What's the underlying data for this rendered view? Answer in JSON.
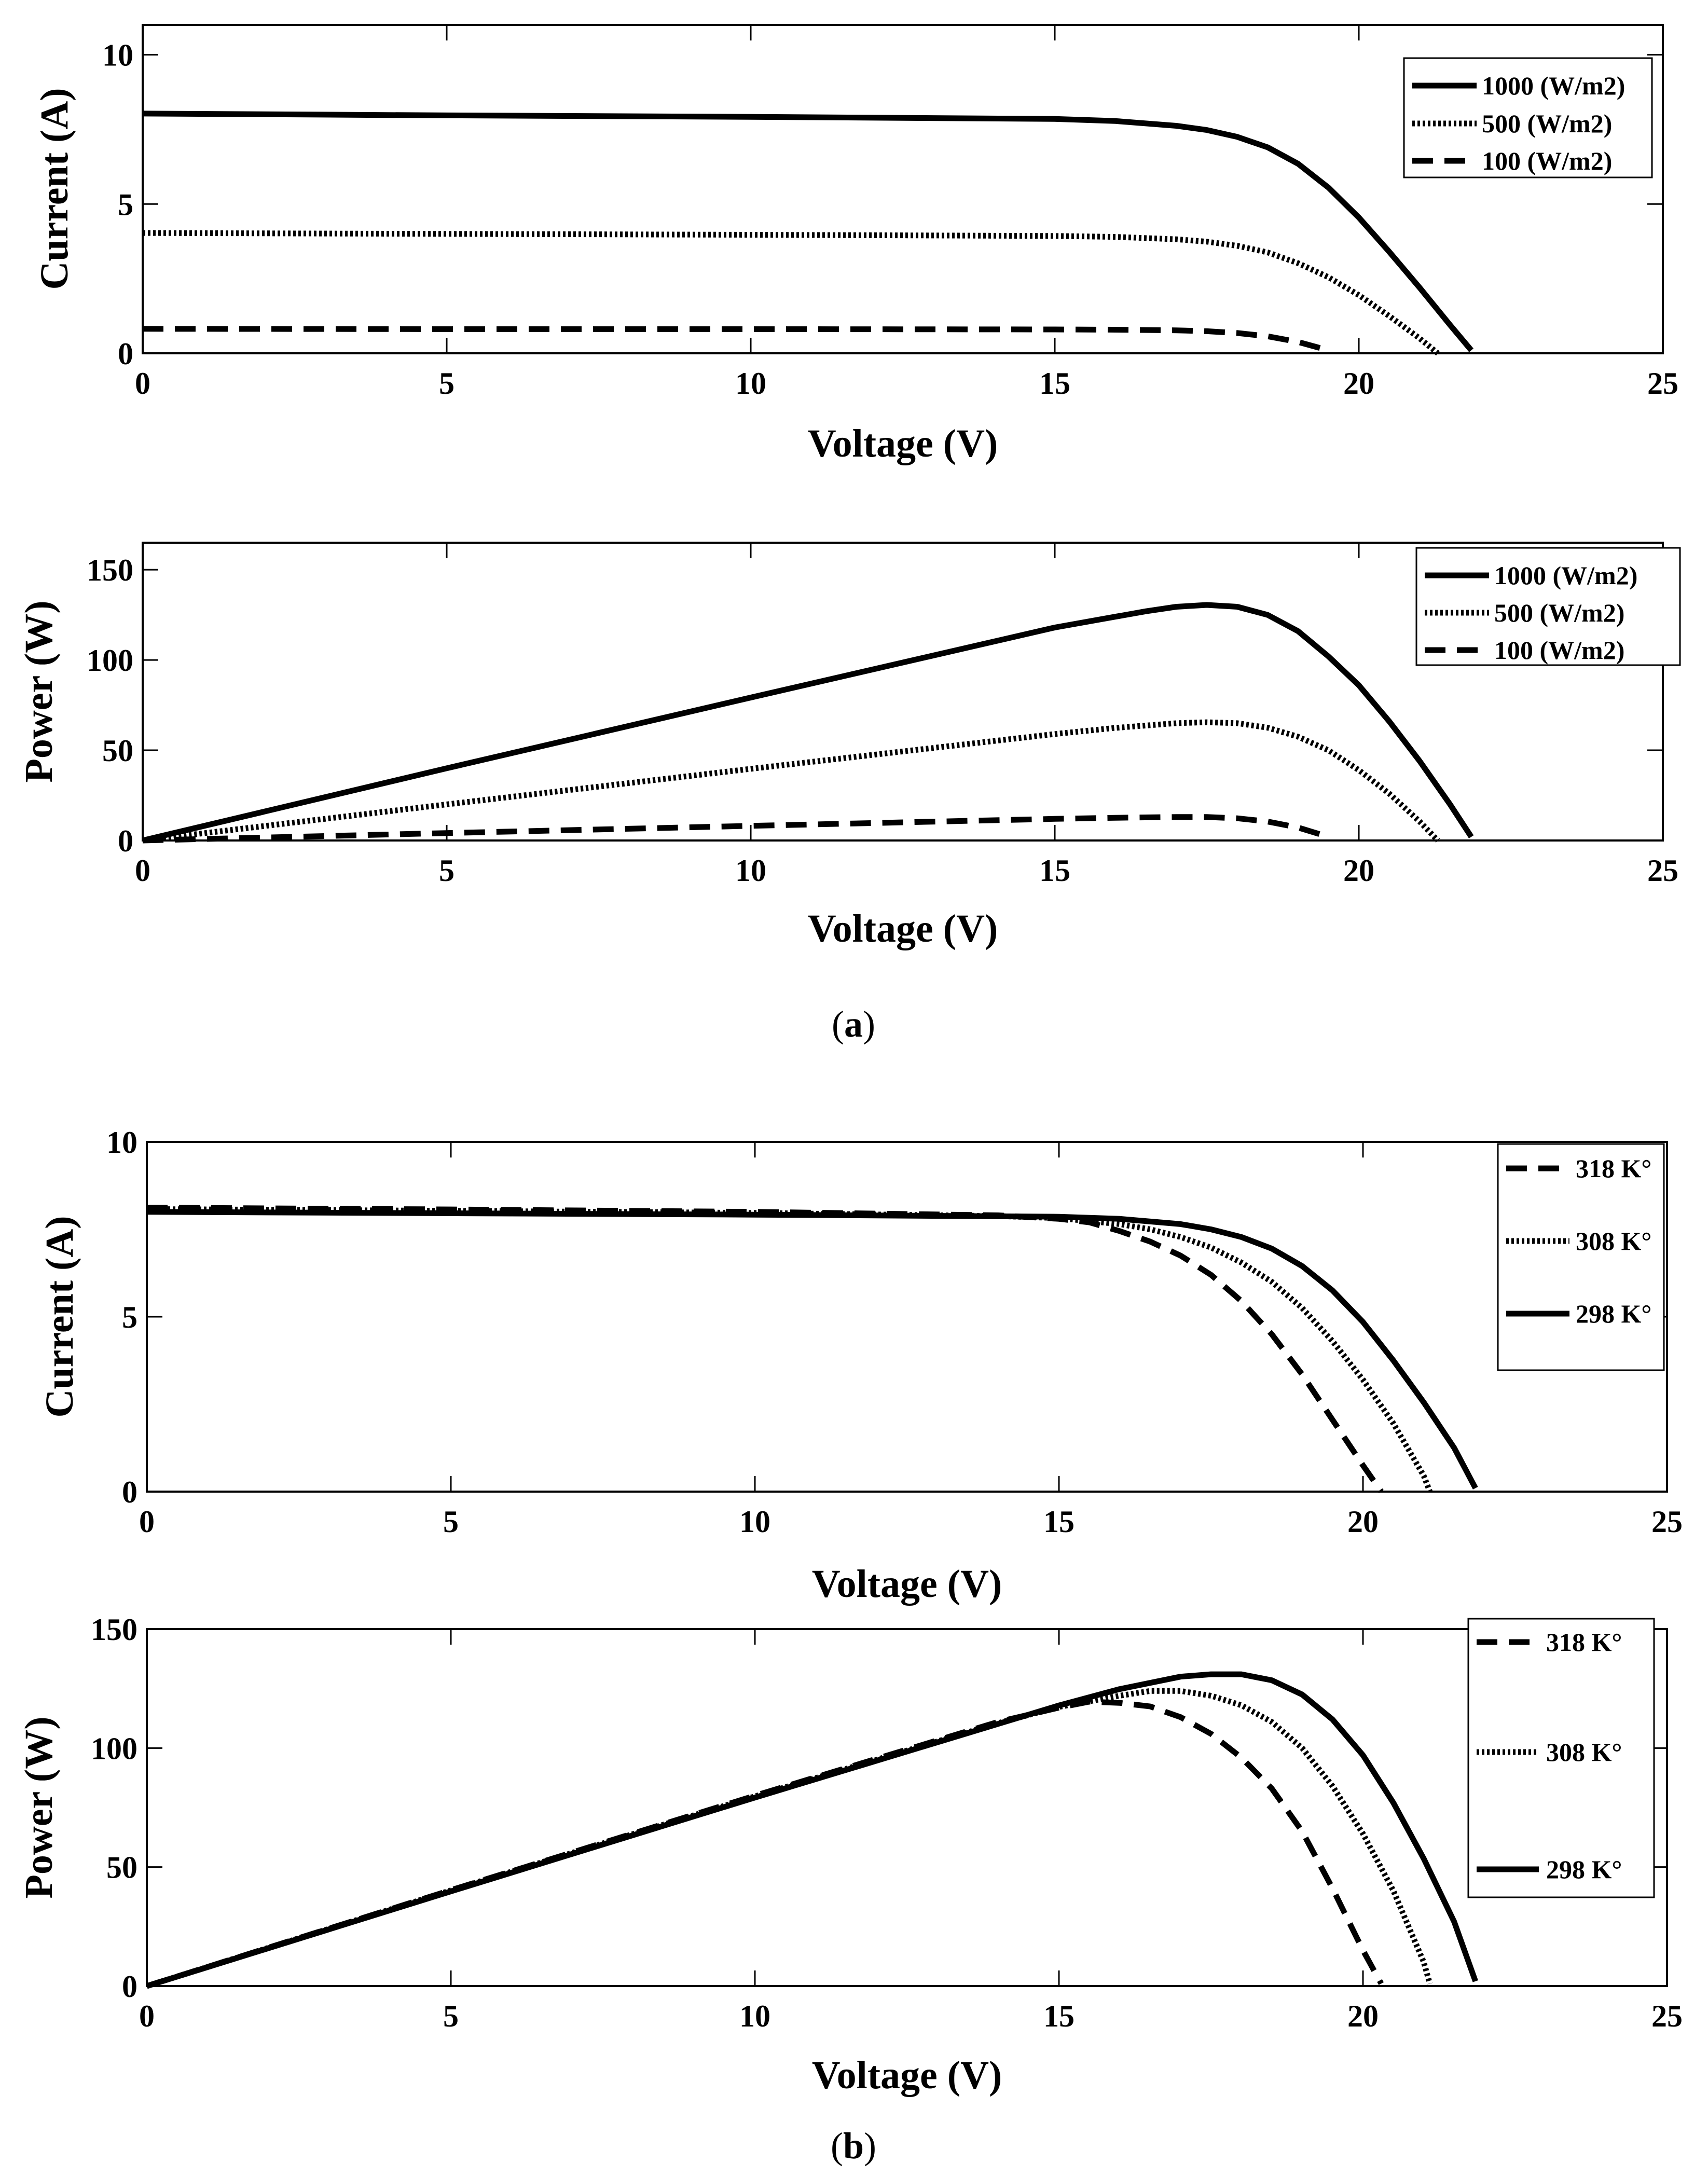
{
  "captions": {
    "a": "(a)",
    "b": "(b)"
  },
  "caption_parts": {
    "a": [
      "(",
      "a",
      ")"
    ],
    "b": [
      "(",
      "b",
      ")"
    ]
  },
  "chart_data": [
    {
      "id": "a1",
      "type": "line",
      "xlabel": "Voltage (V)",
      "ylabel": "Current (A)",
      "xlim": [
        0,
        25
      ],
      "ylim": [
        0,
        11
      ],
      "xticks": [
        0,
        5,
        10,
        15,
        20,
        25
      ],
      "yticks": [
        0,
        5,
        10
      ],
      "grid": false,
      "legend_position": "top-right",
      "series": [
        {
          "name": "1000 (W/m2)",
          "style": "solid",
          "x": [
            0,
            5,
            10,
            15,
            16,
            17,
            17.5,
            18,
            18.5,
            19,
            19.5,
            20,
            20.5,
            21,
            21.5,
            21.85
          ],
          "y": [
            8.03,
            7.97,
            7.92,
            7.85,
            7.78,
            7.62,
            7.48,
            7.25,
            6.9,
            6.35,
            5.55,
            4.55,
            3.4,
            2.2,
            0.95,
            0.1
          ]
        },
        {
          "name": "500 (W/m2)",
          "style": "dotted",
          "x": [
            0,
            5,
            10,
            15,
            16,
            17,
            17.5,
            18,
            18.5,
            19,
            19.5,
            20,
            20.5,
            21,
            21.3
          ],
          "y": [
            4.03,
            4.0,
            3.97,
            3.93,
            3.9,
            3.82,
            3.74,
            3.6,
            3.38,
            3.02,
            2.55,
            1.95,
            1.25,
            0.5,
            0.0
          ]
        },
        {
          "name": "100 (W/m2)",
          "style": "dashed",
          "x": [
            0,
            5,
            10,
            15,
            16,
            17,
            17.5,
            18,
            18.5,
            19,
            19.5
          ],
          "y": [
            0.82,
            0.81,
            0.81,
            0.8,
            0.79,
            0.77,
            0.74,
            0.68,
            0.57,
            0.38,
            0.1
          ]
        }
      ]
    },
    {
      "id": "a2",
      "type": "line",
      "xlabel": "Voltage (V)",
      "ylabel": "Power (W)",
      "xlim": [
        0,
        25
      ],
      "ylim": [
        0,
        165
      ],
      "xticks": [
        0,
        5,
        10,
        15,
        20,
        25
      ],
      "yticks": [
        0,
        50,
        100,
        150
      ],
      "grid": false,
      "legend_position": "top-right",
      "series": [
        {
          "name": "1000 (W/m2)",
          "style": "solid",
          "x": [
            0,
            5,
            10,
            15,
            16,
            16.5,
            17,
            17.5,
            18,
            18.5,
            19,
            19.5,
            20,
            20.5,
            21,
            21.5,
            21.85
          ],
          "y": [
            0,
            40,
            79.2,
            118,
            124,
            127,
            129.5,
            130.5,
            129.5,
            125,
            116,
            102,
            86,
            66,
            44,
            20,
            2
          ]
        },
        {
          "name": "500 (W/m2)",
          "style": "dotted",
          "x": [
            0,
            5,
            10,
            15,
            16,
            17,
            17.5,
            18,
            18.5,
            19,
            19.5,
            20,
            20.5,
            21,
            21.3
          ],
          "y": [
            0,
            20,
            39.7,
            59,
            62.4,
            65,
            65.5,
            65,
            62.5,
            57.5,
            50,
            39,
            26,
            10.5,
            0
          ]
        },
        {
          "name": "100 (W/m2)",
          "style": "dashed",
          "x": [
            0,
            5,
            10,
            15,
            16,
            17,
            17.5,
            18,
            18.5,
            19,
            19.5
          ],
          "y": [
            0,
            4.1,
            8.1,
            12,
            12.6,
            13,
            13,
            12.3,
            10.5,
            7.2,
            2
          ]
        }
      ]
    },
    {
      "id": "b1",
      "type": "line",
      "xlabel": "Voltage (V)",
      "ylabel": "Current (A)",
      "xlim": [
        0,
        25
      ],
      "ylim": [
        0,
        10
      ],
      "xticks": [
        0,
        5,
        10,
        15,
        20,
        25
      ],
      "yticks": [
        0,
        5,
        10
      ],
      "grid": false,
      "legend_position": "top-right",
      "series": [
        {
          "name": "318 K°",
          "style": "dashed",
          "x": [
            0,
            5,
            10,
            14,
            15,
            15.5,
            16,
            16.5,
            17,
            17.5,
            18,
            18.5,
            19,
            19.5,
            20,
            20.3
          ],
          "y": [
            8.12,
            8.07,
            8.0,
            7.9,
            7.8,
            7.7,
            7.45,
            7.15,
            6.75,
            6.2,
            5.45,
            4.5,
            3.35,
            2.05,
            0.75,
            0.0
          ]
        },
        {
          "name": "308 K°",
          "style": "dotted",
          "x": [
            0,
            5,
            10,
            14,
            15,
            16,
            16.5,
            17,
            17.5,
            18,
            18.5,
            19,
            19.5,
            20,
            20.5,
            21,
            21.1
          ],
          "y": [
            8.08,
            8.03,
            7.97,
            7.88,
            7.82,
            7.65,
            7.5,
            7.28,
            6.98,
            6.55,
            6.0,
            5.25,
            4.3,
            3.2,
            1.95,
            0.45,
            0.0
          ]
        },
        {
          "name": "298 K°",
          "style": "solid",
          "x": [
            0,
            5,
            10,
            15,
            16,
            17,
            17.5,
            18,
            18.5,
            19,
            19.5,
            20,
            20.5,
            21,
            21.5,
            21.85
          ],
          "y": [
            8.0,
            7.96,
            7.92,
            7.86,
            7.8,
            7.65,
            7.5,
            7.28,
            6.95,
            6.45,
            5.75,
            4.85,
            3.75,
            2.55,
            1.25,
            0.1
          ]
        }
      ]
    },
    {
      "id": "b2",
      "type": "line",
      "xlabel": "Voltage (V)",
      "ylabel": "Power (W)",
      "xlim": [
        0,
        25
      ],
      "ylim": [
        0,
        150
      ],
      "xticks": [
        0,
        5,
        10,
        15,
        20,
        25
      ],
      "yticks": [
        0,
        50,
        100,
        150
      ],
      "grid": false,
      "legend_position": "top-right",
      "series": [
        {
          "name": "318 K°",
          "style": "dashed",
          "x": [
            0,
            5,
            10,
            14,
            15,
            15.5,
            16,
            16.5,
            17,
            17.5,
            18,
            18.5,
            19,
            19.5,
            20,
            20.3
          ],
          "y": [
            0,
            40.3,
            80,
            111,
            117,
            119.5,
            119,
            117.5,
            113,
            106,
            96,
            83,
            65,
            41,
            15,
            1
          ]
        },
        {
          "name": "308 K°",
          "style": "dotted",
          "x": [
            0,
            5,
            10,
            14,
            15,
            16,
            16.5,
            17,
            17.5,
            18,
            18.5,
            19,
            19.5,
            20,
            20.5,
            21,
            21.1
          ],
          "y": [
            0,
            40.2,
            79.7,
            110.5,
            117.3,
            122,
            124,
            124,
            122,
            118,
            111,
            100,
            84,
            64,
            40,
            10,
            1
          ]
        },
        {
          "name": "298 K°",
          "style": "solid",
          "x": [
            0,
            5,
            10,
            15,
            16,
            17,
            17.5,
            18,
            18.5,
            19,
            19.5,
            20,
            20.5,
            21,
            21.5,
            21.85
          ],
          "y": [
            0,
            39.8,
            79.2,
            117.9,
            124.8,
            130,
            131,
            131,
            128.5,
            122.5,
            112,
            97,
            77,
            53.5,
            27,
            2
          ]
        }
      ]
    }
  ]
}
